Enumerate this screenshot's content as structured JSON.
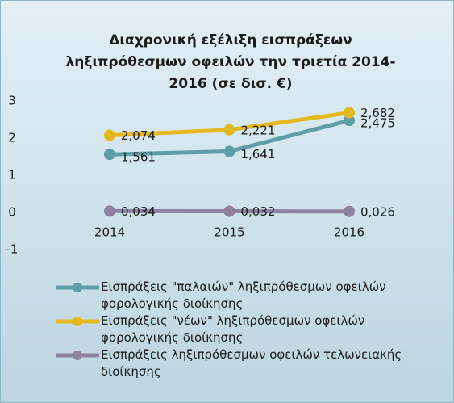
{
  "chart_data": {
    "type": "line",
    "title": "Διαχρονική εξέλιξη εισπράξεων ληξιπρόθεσμων οφειλών την τριετία 2014-2016 (σε δισ. €)",
    "categories": [
      "2014",
      "2015",
      "2016"
    ],
    "series": [
      {
        "name": "Εισπράξεις \"παλαιών\" ληξιπρόθεσμων οφειλών φορολογικής διοίκησης",
        "color": "#5f9ea8",
        "values": [
          1.561,
          1.641,
          2.475
        ],
        "value_labels": [
          "1,561",
          "1,641",
          "2,475"
        ]
      },
      {
        "name": "Εισπράξεις \"νέων\" ληξιπρόθεσμων οφειλών φορολογικής διοίκησης",
        "color": "#e3b820",
        "values": [
          2.074,
          2.221,
          2.682
        ],
        "value_labels": [
          "2,074",
          "2,221",
          "2,682"
        ]
      },
      {
        "name": "Εισπράξεις ληξιπρόθεσμων οφειλών τελωνειακής διοίκησης",
        "color": "#8e82a0",
        "values": [
          0.034,
          0.032,
          0.026
        ],
        "value_labels": [
          "0,034",
          "0,032",
          "0,026"
        ]
      }
    ],
    "ylim": [
      -1,
      3
    ],
    "yticks": [
      -1,
      0,
      1,
      2,
      3
    ],
    "grid": false
  }
}
